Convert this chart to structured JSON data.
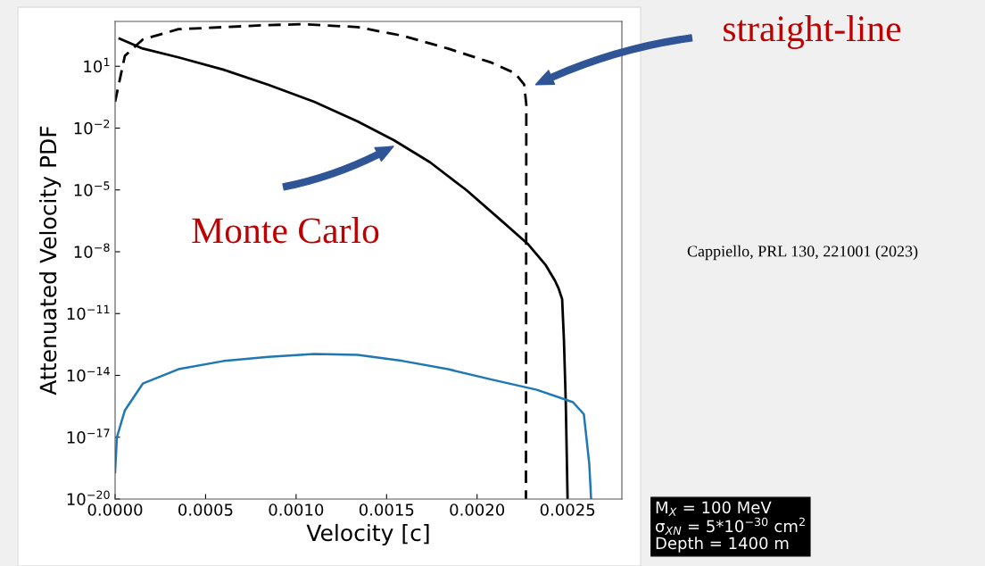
{
  "chart_data": {
    "type": "line",
    "xlabel": "Velocity [c]",
    "ylabel": "Attenuated Velocity PDF",
    "log": "y",
    "grid": false,
    "marker": "none",
    "xlim": [
      0,
      0.0028
    ],
    "xticks": [
      {
        "value": 0,
        "label": "0.0000"
      },
      {
        "value": 0.0005,
        "label": "0.0005"
      },
      {
        "value": 0.001,
        "label": "0.0010"
      },
      {
        "value": 0.0015,
        "label": "0.0015"
      },
      {
        "value": 0.002,
        "label": "0.0020"
      },
      {
        "value": 0.0025,
        "label": "0.0025"
      }
    ],
    "ylim": [
      1e-20,
      1500.0
    ],
    "yticks": [
      {
        "value": 10,
        "label": "10$^{1}$"
      },
      {
        "value": 0.01,
        "label": "10$^{−2}$"
      },
      {
        "value": 1e-05,
        "label": "10$^{−5}$"
      },
      {
        "value": 1e-08,
        "label": "10$^{−8}$"
      },
      {
        "value": 1e-11,
        "label": "10$^{−11}$"
      },
      {
        "value": 1e-14,
        "label": "10$^{−14}$"
      },
      {
        "value": 1e-17,
        "label": "10$^{−17}$"
      },
      {
        "value": 1e-20,
        "label": "10$^{−20}$"
      }
    ],
    "series": [
      {
        "color": "#000000",
        "line_style": "dashed",
        "x": [
          0,
          5.4e-05,
          0.000153,
          0.00035,
          0.00085,
          0.00104,
          0.00134,
          0.00159,
          0.00184,
          0.00208,
          0.00221,
          0.00226,
          0.002272,
          0.00227
        ],
        "values": [
          0.19,
          32,
          200,
          630,
          1000,
          1100,
          800,
          300,
          72,
          15,
          4.6,
          1.3,
          0.14,
          1e-20
        ]
      },
      {
        "color": "#000000",
        "line_style": "solid",
        "x": [
          2.5e-05,
          0.000153,
          0.00035,
          0.0006,
          0.000847,
          0.0011,
          0.00134,
          0.00154,
          0.00174,
          0.00194,
          0.00213,
          0.00228,
          0.00238,
          0.00243,
          0.00245,
          0.00247,
          0.00248,
          0.00249,
          0.0025
        ],
        "values": [
          220,
          72,
          27,
          6.8,
          1.26,
          0.19,
          0.021,
          0.0026,
          0.00022,
          1e-05,
          3.5e-07,
          2.4e-08,
          2.2e-09,
          4e-10,
          1.7e-10,
          5e-11,
          5e-13,
          5e-16,
          1e-20
        ]
      },
      {
        "color": "#1f77b4",
        "line_style": "solid",
        "x": [
          0,
          1e-05,
          5.4e-05,
          0.000153,
          0.00035,
          0.0006,
          0.000847,
          0.0011,
          0.00134,
          0.00159,
          0.00184,
          0.00208,
          0.00233,
          0.00253,
          0.00259,
          0.00262,
          0.00263
        ],
        "values": [
          2e-19,
          1e-17,
          2e-16,
          4e-15,
          2e-14,
          5e-14,
          8e-14,
          1.1e-13,
          1e-13,
          5e-14,
          2e-14,
          6.3e-15,
          2e-15,
          5e-16,
          1.3e-16,
          5e-19,
          1e-20
        ]
      }
    ],
    "annotations": [
      "straight-line",
      {
        "text": "Monte Carlo",
        "x": 0.00155,
        "y": 0.0015
      },
      "Cappiello, PRL 130, 221001 (2023)",
      "M$_{X}$ = 100 MeV\nσ$_{XN}$ = 5*10$^{−30}$ cm$^{2}$\nDepth = 1400 m"
    ]
  }
}
